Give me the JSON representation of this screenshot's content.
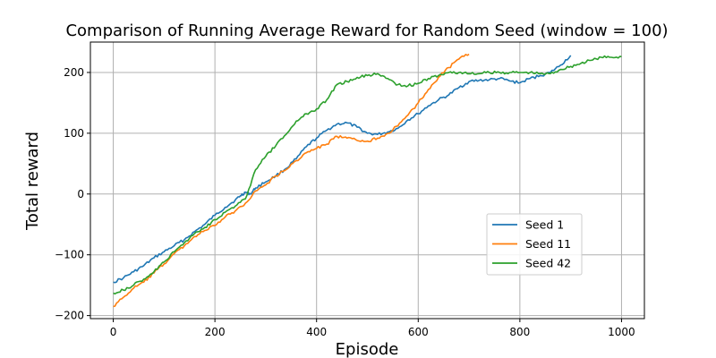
{
  "chart_data": {
    "type": "line",
    "title": "Comparison of Running Average Reward for Random Seed (window = 100)",
    "xlabel": "Episode",
    "ylabel": "Total reward",
    "xlim": [
      -45,
      1045
    ],
    "ylim": [
      -205,
      250
    ],
    "xticks": [
      0,
      200,
      400,
      600,
      800,
      1000
    ],
    "yticks": [
      -200,
      -100,
      0,
      100,
      200
    ],
    "xtick_labels": [
      "0",
      "200",
      "400",
      "600",
      "800",
      "1000"
    ],
    "ytick_labels": [
      "−200",
      "−100",
      "0",
      "100",
      "200"
    ],
    "grid": true,
    "legend_position": "lower-right",
    "series": [
      {
        "name": "Seed 1",
        "color": "#1f77b4",
        "x": [
          0,
          20,
          40,
          60,
          80,
          100,
          120,
          140,
          160,
          180,
          200,
          220,
          240,
          250,
          260,
          270,
          280,
          300,
          320,
          340,
          360,
          380,
          400,
          420,
          440,
          460,
          480,
          500,
          520,
          540,
          560,
          580,
          600,
          620,
          640,
          660,
          680,
          700,
          720,
          740,
          760,
          780,
          800,
          820,
          840,
          860,
          880,
          900
        ],
        "y": [
          -145,
          -138,
          -128,
          -118,
          -105,
          -95,
          -85,
          -75,
          -62,
          -50,
          -35,
          -22,
          -10,
          -3,
          3,
          0,
          10,
          20,
          30,
          42,
          58,
          78,
          92,
          105,
          115,
          117,
          110,
          100,
          98,
          102,
          108,
          122,
          132,
          145,
          155,
          163,
          175,
          185,
          187,
          188,
          190,
          186,
          183,
          190,
          195,
          200,
          212,
          228
        ]
      },
      {
        "name": "Seed 11",
        "color": "#ff7f0e",
        "x": [
          0,
          20,
          40,
          60,
          80,
          100,
          120,
          140,
          160,
          180,
          200,
          220,
          240,
          260,
          280,
          300,
          320,
          340,
          360,
          380,
          400,
          420,
          440,
          460,
          480,
          500,
          520,
          540,
          560,
          580,
          600,
          620,
          640,
          660,
          680,
          700
        ],
        "y": [
          -185,
          -170,
          -155,
          -145,
          -130,
          -115,
          -98,
          -85,
          -70,
          -60,
          -52,
          -38,
          -28,
          -15,
          5,
          15,
          30,
          40,
          55,
          68,
          75,
          82,
          95,
          92,
          88,
          87,
          92,
          100,
          112,
          130,
          150,
          172,
          192,
          208,
          222,
          230
        ]
      },
      {
        "name": "Seed 42",
        "color": "#2ca02c",
        "x": [
          0,
          20,
          40,
          60,
          80,
          100,
          120,
          140,
          160,
          180,
          200,
          220,
          240,
          260,
          280,
          300,
          320,
          340,
          360,
          380,
          400,
          420,
          440,
          460,
          480,
          500,
          520,
          540,
          560,
          580,
          600,
          620,
          640,
          660,
          680,
          700,
          720,
          740,
          760,
          780,
          800,
          820,
          840,
          860,
          880,
          900,
          920,
          940,
          960,
          980,
          1000
        ],
        "y": [
          -163,
          -158,
          -150,
          -140,
          -128,
          -112,
          -95,
          -80,
          -65,
          -55,
          -42,
          -30,
          -20,
          -8,
          40,
          62,
          80,
          98,
          120,
          132,
          140,
          155,
          180,
          185,
          192,
          195,
          198,
          190,
          180,
          178,
          182,
          190,
          195,
          200,
          200,
          198,
          198,
          200,
          200,
          200,
          200,
          200,
          198,
          198,
          205,
          210,
          215,
          220,
          225,
          225,
          226
        ]
      }
    ]
  }
}
